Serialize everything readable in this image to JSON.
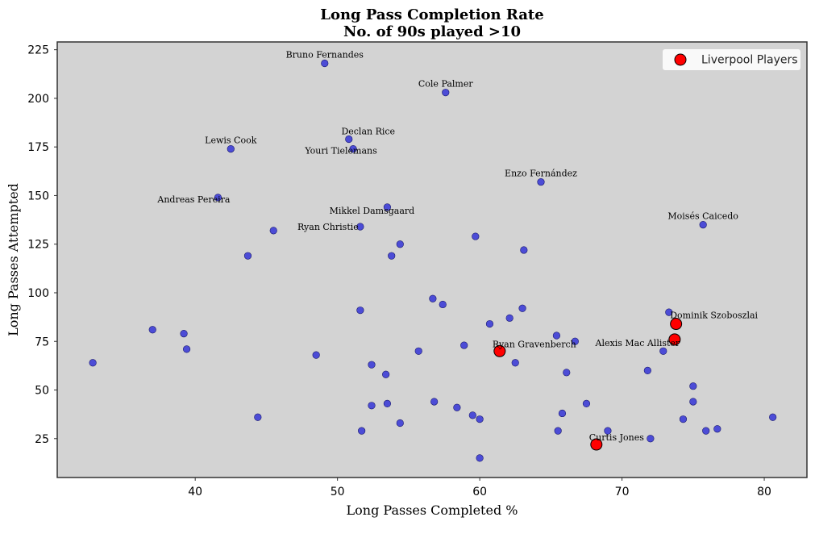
{
  "chart_data": {
    "type": "scatter",
    "title": "Long Pass Completion Rate",
    "subtitle": "No. of 90s played >10",
    "xlabel": "Long Passes Completed %",
    "ylabel": "Long Passes Attempted",
    "xlim": [
      30.3,
      83.0
    ],
    "ylim": [
      5,
      229
    ],
    "xticks": [
      40,
      50,
      60,
      70,
      80
    ],
    "yticks": [
      25,
      50,
      75,
      100,
      125,
      150,
      175,
      200,
      225
    ],
    "grid": false,
    "legend_position": "top-right",
    "colors": {
      "background": "#d3d3d3",
      "others": "#3d3dd6",
      "liverpool": "#ff0000"
    },
    "series": [
      {
        "name": "",
        "color": "#3d3dd6",
        "points": [
          {
            "x": 49.1,
            "y": 218,
            "label": "Bruno Fernandes"
          },
          {
            "x": 57.6,
            "y": 203,
            "label": "Cole Palmer"
          },
          {
            "x": 50.8,
            "y": 179,
            "label": "Declan Rice"
          },
          {
            "x": 51.1,
            "y": 174,
            "label": "Youri Tielemans"
          },
          {
            "x": 42.5,
            "y": 174,
            "label": "Lewis Cook"
          },
          {
            "x": 64.3,
            "y": 157,
            "label": "Enzo Fernández"
          },
          {
            "x": 41.6,
            "y": 149,
            "label": "Andreas Pereira"
          },
          {
            "x": 53.5,
            "y": 144,
            "label": "Mikkel Damsgaard"
          },
          {
            "x": 51.6,
            "y": 134,
            "label": "Ryan Christie"
          },
          {
            "x": 75.7,
            "y": 135,
            "label": "Moisés Caicedo"
          },
          {
            "x": 45.5,
            "y": 132
          },
          {
            "x": 59.7,
            "y": 129
          },
          {
            "x": 54.4,
            "y": 125
          },
          {
            "x": 63.1,
            "y": 122
          },
          {
            "x": 43.7,
            "y": 119
          },
          {
            "x": 53.8,
            "y": 119
          },
          {
            "x": 56.7,
            "y": 97
          },
          {
            "x": 57.4,
            "y": 94
          },
          {
            "x": 51.6,
            "y": 91
          },
          {
            "x": 63.0,
            "y": 92
          },
          {
            "x": 73.3,
            "y": 90
          },
          {
            "x": 62.1,
            "y": 87
          },
          {
            "x": 60.7,
            "y": 84
          },
          {
            "x": 37.0,
            "y": 81
          },
          {
            "x": 39.2,
            "y": 79
          },
          {
            "x": 65.4,
            "y": 78
          },
          {
            "x": 66.7,
            "y": 75
          },
          {
            "x": 39.4,
            "y": 71
          },
          {
            "x": 58.9,
            "y": 73
          },
          {
            "x": 55.7,
            "y": 70
          },
          {
            "x": 72.9,
            "y": 70
          },
          {
            "x": 48.5,
            "y": 68
          },
          {
            "x": 32.8,
            "y": 64
          },
          {
            "x": 62.5,
            "y": 64
          },
          {
            "x": 52.4,
            "y": 63
          },
          {
            "x": 53.4,
            "y": 58
          },
          {
            "x": 66.1,
            "y": 59
          },
          {
            "x": 71.8,
            "y": 60
          },
          {
            "x": 75.0,
            "y": 52
          },
          {
            "x": 56.8,
            "y": 44
          },
          {
            "x": 75.0,
            "y": 44
          },
          {
            "x": 52.4,
            "y": 42
          },
          {
            "x": 53.5,
            "y": 43
          },
          {
            "x": 67.5,
            "y": 43
          },
          {
            "x": 58.4,
            "y": 41
          },
          {
            "x": 59.5,
            "y": 37
          },
          {
            "x": 65.8,
            "y": 38
          },
          {
            "x": 44.4,
            "y": 36
          },
          {
            "x": 60.0,
            "y": 35
          },
          {
            "x": 74.3,
            "y": 35
          },
          {
            "x": 80.6,
            "y": 36
          },
          {
            "x": 54.4,
            "y": 33
          },
          {
            "x": 51.7,
            "y": 29
          },
          {
            "x": 65.5,
            "y": 29
          },
          {
            "x": 69.0,
            "y": 29
          },
          {
            "x": 75.9,
            "y": 29
          },
          {
            "x": 76.7,
            "y": 30
          },
          {
            "x": 72.0,
            "y": 25
          },
          {
            "x": 60.0,
            "y": 15
          }
        ]
      },
      {
        "name": "Liverpool Players",
        "color": "#ff0000",
        "points": [
          {
            "x": 73.8,
            "y": 84,
            "label": "Dominik Szoboszlai"
          },
          {
            "x": 73.7,
            "y": 76,
            "label": "Alexis Mac Allister"
          },
          {
            "x": 61.4,
            "y": 70,
            "label": "Ryan Gravenberch"
          },
          {
            "x": 68.2,
            "y": 22,
            "label": "Curtis Jones"
          }
        ]
      }
    ]
  }
}
